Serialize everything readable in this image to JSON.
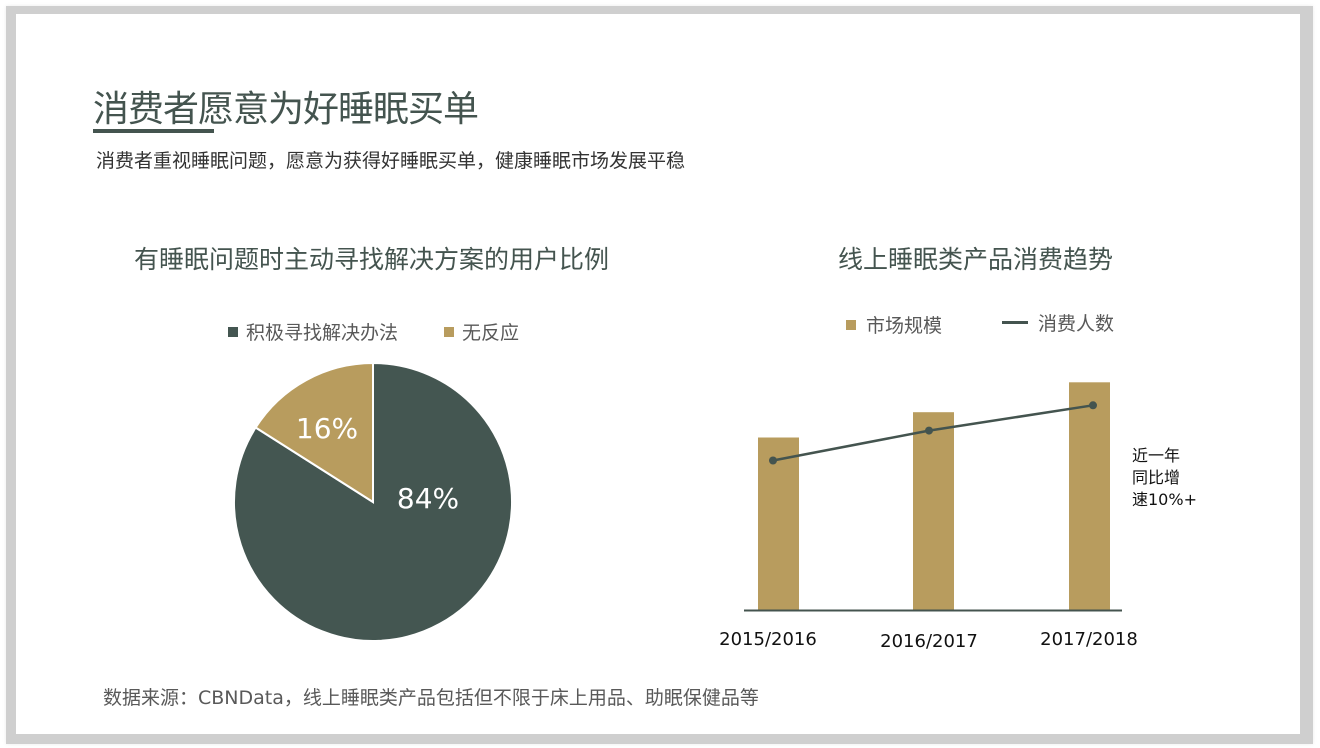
{
  "slide": {
    "title": "消费者愿意为好睡眠买单",
    "subtitle": "消费者重视睡眠问题，愿意为获得好睡眠买单，健康睡眠市场发展平稳",
    "source": "数据来源：CBNData，线上睡眠类产品包括但不限于床上用品、助眠保健品等"
  },
  "colors": {
    "dark": "#445651",
    "gold": "#b89c5e",
    "line": "#44544f",
    "frame": "#cfcfcf"
  },
  "chart_data": [
    {
      "type": "pie",
      "title": "有睡眠问题时主动寻找解决方案的用户比例",
      "categories": [
        "积极寻找解决办法",
        "无反应"
      ],
      "values": [
        84,
        16
      ],
      "labels": [
        "84%",
        "16%"
      ],
      "colors": [
        "#445651",
        "#b89c5e"
      ],
      "legend_position": "top"
    },
    {
      "type": "bar",
      "title": "线上睡眠类产品消费趋势",
      "categories": [
        "2015/2016",
        "2016/2017",
        "2017/2018"
      ],
      "series": [
        {
          "name": "市场规模",
          "type": "bar",
          "color": "#b89c5e",
          "values": [
            75,
            86,
            99
          ]
        },
        {
          "name": "消费人数",
          "type": "line",
          "color": "#44544f",
          "values": [
            65,
            78,
            89
          ]
        }
      ],
      "annotation": [
        "近一年",
        "同比增",
        "速10%+"
      ],
      "xlabel": "",
      "ylabel": "",
      "ylim": [
        0,
        100
      ],
      "grid": false,
      "y_axis_visible": false,
      "legend_position": "top"
    }
  ]
}
